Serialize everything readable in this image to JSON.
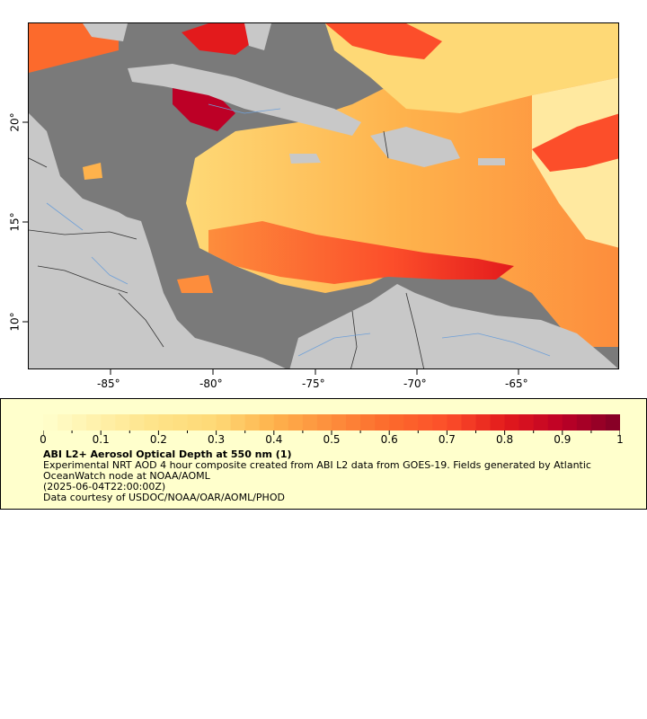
{
  "map": {
    "x_ticks": [
      "-85°",
      "-80°",
      "-75°",
      "-70°",
      "-65°"
    ],
    "y_ticks": [
      "20°",
      "15°",
      "10°"
    ],
    "colors": {
      "ocean_nodata": "#7a7a7a",
      "land": "#c8c8c8",
      "borders": "#333333",
      "rivers": "#6fa0d8"
    }
  },
  "colorbar": {
    "min": 0,
    "max": 1,
    "labels": [
      "0",
      "0.1",
      "0.2",
      "0.3",
      "0.4",
      "0.5",
      "0.6",
      "0.7",
      "0.8",
      "0.9",
      "1"
    ],
    "colors": [
      "#ffffcc",
      "#fff0a8",
      "#fee287",
      "#fed976",
      "#feb24c",
      "#fd8d3c",
      "#fc6a2c",
      "#fc4e2a",
      "#e31a1c",
      "#bd0026",
      "#800026"
    ]
  },
  "legend": {
    "title": "ABI L2+ Aerosol Optical Depth at 550 nm (1)",
    "description": "Experimental NRT AOD 4 hour composite created from ABI L2 data from GOES-19. Fields generated by Atlantic OceanWatch node at NOAA/AOML",
    "time": "(2025-06-04T22:00:00Z)",
    "credit": "Data courtesy of USDOC/NOAA/OAR/AOML/PHOD"
  }
}
